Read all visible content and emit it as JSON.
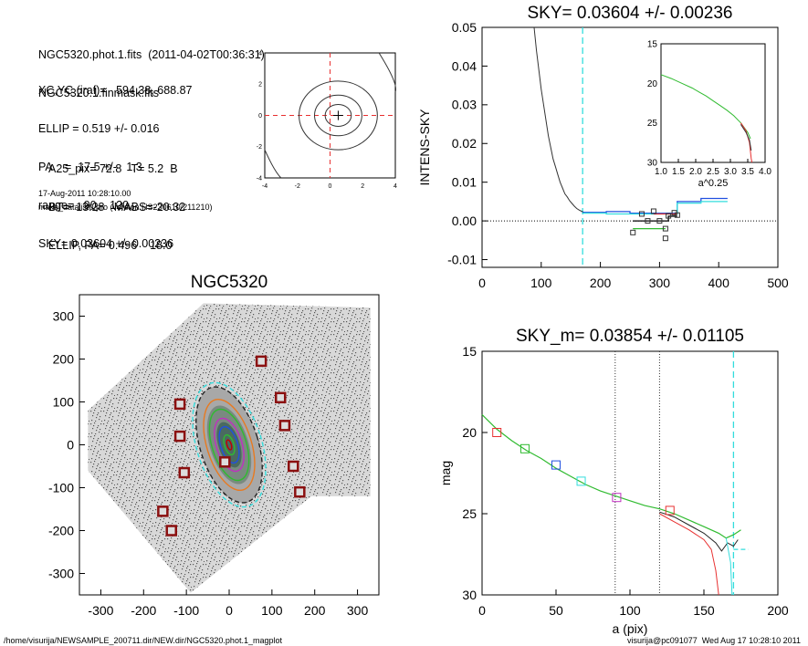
{
  "header": {
    "info_lines": [
      "NGC5320.phot.1.fits  (2011-04-02T00:36:31)",
      "NGC5320.1.finmask.fits"
    ],
    "params": [
      "XC,YC (iraf)=   594.38, 688.87",
      "ELLIP = 0.519 +/- 0.016",
      "PA    =  17.5 +/-   1.3",
      "range=   90.-  120.",
      "SKY= 0.03604 +/- 0.00236"
    ],
    "params2": [
      "A25_pix= 72.8   T= 5.2  B",
      "BT=  13.28   MABS=-20.32",
      "ELLIP, PA= 0.496    18.0"
    ],
    "date": "17-Aug-2011 10:28:10.00",
    "program": "make_datalist0.pro (version HS230610/211210)"
  },
  "footer": {
    "path": "/home/visurija/NEWSAMPLE_200711.dir/NEW.dir/NGC5320.phot.1_magplot",
    "user": "visurija@pc091077  Wed Aug 17 10:28:10 2011"
  },
  "colors": {
    "cyan": "#33dddd",
    "red": "#e83030",
    "green": "#30bb30",
    "blue": "#2050e0",
    "magenta": "#c030c0",
    "gray": "#666666"
  },
  "chart_data": [
    {
      "type": "line",
      "id": "contour",
      "x_ticks": [
        "-4",
        "-2",
        "0",
        "2",
        "4"
      ],
      "y_ticks": [
        "-4",
        "-2",
        "0",
        "2",
        "4"
      ],
      "xlim": [
        -4,
        4
      ],
      "ylim": [
        -4,
        4
      ],
      "contours": [
        {
          "a": 2.4,
          "b": 2.2
        },
        {
          "a": 1.45,
          "b": 1.3
        },
        {
          "a": 0.8,
          "b": 0.7
        }
      ],
      "center": [
        0.5,
        0
      ]
    },
    {
      "type": "line",
      "id": "sky",
      "title": "SKY= 0.03604 +/- 0.00236",
      "ylabel": "INTENS-SKY",
      "xlim": [
        0,
        500
      ],
      "ylim": [
        -0.012,
        0.05
      ],
      "x_ticks": [
        "0",
        "100",
        "200",
        "300",
        "400",
        "500"
      ],
      "y_ticks": [
        "-0.01",
        "0.00",
        "0.01",
        "0.02",
        "0.03",
        "0.04",
        "0.05"
      ],
      "sky_line_x": 170,
      "profile": [
        [
          88,
          0.05
        ],
        [
          92,
          0.044
        ],
        [
          96,
          0.039
        ],
        [
          100,
          0.034
        ],
        [
          104,
          0.03
        ],
        [
          108,
          0.026
        ],
        [
          112,
          0.022
        ],
        [
          116,
          0.019
        ],
        [
          120,
          0.016
        ],
        [
          124,
          0.014
        ],
        [
          128,
          0.012
        ],
        [
          132,
          0.01
        ],
        [
          136,
          0.0085
        ],
        [
          140,
          0.007
        ],
        [
          144,
          0.0062
        ],
        [
          148,
          0.0052
        ],
        [
          152,
          0.0045
        ],
        [
          156,
          0.0038
        ],
        [
          160,
          0.0032
        ],
        [
          164,
          0.0028
        ],
        [
          168,
          0.0025
        ],
        [
          172,
          0.0022
        ]
      ],
      "series": [
        {
          "color": "blue",
          "points": [
            [
              170,
              0.0022
            ],
            [
              210,
              0.0022
            ],
            [
              210,
              0.0024
            ],
            [
              250,
              0.0024
            ],
            [
              250,
              0.002
            ],
            [
              330,
              0.002
            ],
            [
              330,
              0.005
            ],
            [
              370,
              0.005
            ],
            [
              370,
              0.0058
            ],
            [
              415,
              0.0058
            ]
          ]
        },
        {
          "color": "cyan",
          "points": [
            [
              170,
              0.002
            ],
            [
              210,
              0.002
            ],
            [
              210,
              0.0018
            ],
            [
              330,
              0.0018
            ],
            [
              330,
              0.0046
            ],
            [
              370,
              0.0046
            ],
            [
              370,
              0.005
            ],
            [
              415,
              0.005
            ]
          ]
        },
        {
          "color": "black",
          "points": [
            [
              255,
              0.0
            ],
            [
              315,
              0.0
            ],
            [
              315,
              0.0012
            ],
            [
              330,
              0.0012
            ]
          ]
        },
        {
          "color": "red",
          "points": [
            [
              290,
              0.0018
            ],
            [
              330,
              0.0018
            ]
          ]
        },
        {
          "color": "green",
          "points": [
            [
              255,
              -0.002
            ],
            [
              310,
              -0.002
            ]
          ]
        }
      ],
      "markers": [
        [
          255,
          -0.003
        ],
        [
          280,
          0.0
        ],
        [
          300,
          0.0
        ],
        [
          310,
          -0.0045
        ],
        [
          330,
          0.0015
        ],
        [
          290,
          0.0025
        ],
        [
          315,
          0.0013
        ],
        [
          310,
          -0.002
        ],
        [
          270,
          0.0018
        ],
        [
          325,
          0.0021
        ]
      ]
    },
    {
      "type": "line",
      "id": "inset",
      "xlabel": "a^0.25",
      "xlim": [
        1.0,
        4.0
      ],
      "ylim": [
        15,
        30
      ],
      "x_ticks": [
        "1.0",
        "1.5",
        "2.0",
        "2.5",
        "3.0",
        "3.5",
        "4.0"
      ],
      "y_ticks": [
        "15",
        "20",
        "25",
        "30"
      ],
      "green": [
        [
          1.0,
          18.9
        ],
        [
          1.3,
          19.4
        ],
        [
          1.6,
          20.0
        ],
        [
          1.9,
          20.6
        ],
        [
          2.1,
          21.1
        ],
        [
          2.3,
          21.6
        ],
        [
          2.5,
          22.2
        ],
        [
          2.7,
          22.8
        ],
        [
          2.9,
          23.4
        ],
        [
          3.1,
          24.1
        ],
        [
          3.3,
          25.0
        ],
        [
          3.5,
          26.2
        ],
        [
          3.58,
          27.0
        ]
      ],
      "red": [
        [
          3.3,
          25.0
        ],
        [
          3.45,
          26.0
        ],
        [
          3.55,
          27.5
        ],
        [
          3.6,
          29.5
        ],
        [
          3.62,
          30
        ]
      ]
    },
    {
      "type": "scatter",
      "id": "image",
      "title": "NGC5320",
      "xlim": [
        -350,
        350
      ],
      "ylim": [
        -350,
        350
      ],
      "x_ticks": [
        "-300",
        "-200",
        "-100",
        "0",
        "100",
        "200",
        "300"
      ],
      "y_ticks": [
        "300",
        "200",
        "100",
        "0",
        "-100",
        "-200",
        "-300"
      ],
      "mask_boxes": [
        [
          -115,
          95
        ],
        [
          -115,
          20
        ],
        [
          -105,
          -65
        ],
        [
          -155,
          -155
        ],
        [
          -135,
          -200
        ],
        [
          75,
          195
        ],
        [
          120,
          110
        ],
        [
          130,
          45
        ],
        [
          150,
          -50
        ],
        [
          165,
          -110
        ],
        [
          -10,
          -40
        ]
      ],
      "ellipse_pa": 17.5,
      "ellipses": [
        {
          "a": 150,
          "b": 76,
          "color": "#33dddd",
          "dash": true
        },
        {
          "a": 140,
          "b": 68,
          "color": "#222222",
          "dash": true
        },
        {
          "a": 110,
          "b": 52,
          "color": "#e87a20",
          "dash": false
        },
        {
          "a": 86,
          "b": 40,
          "color": "#30bb30",
          "dash": false
        },
        {
          "a": 64,
          "b": 30,
          "color": "#c030c0",
          "dash": false
        },
        {
          "a": 44,
          "b": 20,
          "color": "#2050e0",
          "dash": false
        },
        {
          "a": 24,
          "b": 11,
          "color": "#30bb30",
          "dash": false
        },
        {
          "a": 12,
          "b": 5,
          "color": "#c00000",
          "dash": false
        }
      ]
    },
    {
      "type": "line",
      "id": "mag",
      "title": "SKY_m=  0.03854 +/- 0.01105",
      "xlabel": "a (pix)",
      "ylabel": "mag",
      "xlim": [
        0,
        200
      ],
      "ylim": [
        15,
        30
      ],
      "x_ticks": [
        "0",
        "50",
        "100",
        "150",
        "200"
      ],
      "y_ticks": [
        "15",
        "20",
        "25",
        "30"
      ],
      "vlines_dotted": [
        90,
        120
      ],
      "sky_line_x": 170,
      "sky_hline": {
        "x": [
          170,
          180
        ],
        "y": 27.2
      },
      "green": [
        [
          0,
          18.9
        ],
        [
          10,
          19.8
        ],
        [
          20,
          20.5
        ],
        [
          30,
          21.1
        ],
        [
          40,
          21.6
        ],
        [
          50,
          22.2
        ],
        [
          60,
          22.7
        ],
        [
          70,
          23.2
        ],
        [
          80,
          23.6
        ],
        [
          90,
          23.9
        ],
        [
          100,
          24.2
        ],
        [
          110,
          24.5
        ],
        [
          120,
          24.7
        ],
        [
          130,
          25.0
        ],
        [
          140,
          25.4
        ],
        [
          150,
          25.8
        ],
        [
          160,
          26.2
        ],
        [
          165,
          26.5
        ],
        [
          170,
          26.3
        ],
        [
          175,
          26.0
        ]
      ],
      "black": [
        [
          120,
          24.9
        ],
        [
          130,
          25.2
        ],
        [
          140,
          25.7
        ],
        [
          150,
          26.2
        ],
        [
          158,
          26.8
        ],
        [
          162,
          27.3
        ],
        [
          166,
          26.8
        ],
        [
          170,
          27.0
        ],
        [
          173,
          26.6
        ]
      ],
      "red": [
        [
          120,
          25.0
        ],
        [
          130,
          25.5
        ],
        [
          140,
          26.0
        ],
        [
          150,
          26.6
        ],
        [
          155,
          27.2
        ],
        [
          158,
          28.5
        ],
        [
          160,
          30
        ]
      ],
      "cyan_drop": [
        [
          165,
          26.5
        ],
        [
          168,
          28
        ],
        [
          169,
          30
        ]
      ],
      "markers": [
        {
          "x": 10,
          "y": 20.0,
          "color": "red"
        },
        {
          "x": 29,
          "y": 21.0,
          "color": "green"
        },
        {
          "x": 50,
          "y": 22.0,
          "color": "blue"
        },
        {
          "x": 67,
          "y": 23.0,
          "color": "cyan"
        },
        {
          "x": 91,
          "y": 24.0,
          "color": "magenta"
        },
        {
          "x": 127,
          "y": 24.8,
          "color": "red"
        }
      ]
    }
  ]
}
